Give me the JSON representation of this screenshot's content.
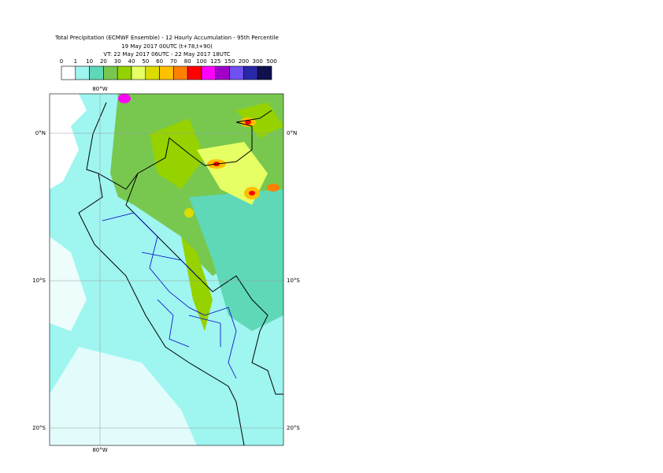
{
  "header": {
    "lines": [
      "Total Precipitation (ECMWF Ensemble) - 12 Hourly Accumulation - 95th Percentile",
      "19 May 2017 00UTC (t+78,t+90)",
      "VT: 22 May 2017 06UTC - 22 May 2017 18UTC"
    ]
  },
  "legend": {
    "labels": [
      0,
      1,
      10,
      20,
      30,
      40,
      50,
      60,
      70,
      80,
      100,
      125,
      150,
      200,
      300,
      500
    ],
    "colors": [
      "#ffffff",
      "#9ff5f0",
      "#5fd8b8",
      "#78c850",
      "#96d200",
      "#e6ff64",
      "#dcdc00",
      "#ffc000",
      "#ff8000",
      "#ff0000",
      "#ff00ff",
      "#a000c8",
      "#7050f0",
      "#2828a8",
      "#10104e"
    ]
  },
  "map": {
    "lon_top": "80°W",
    "lon_bottom": "80°W",
    "lat_left": [
      "0°N",
      "10°S",
      "20°S"
    ],
    "lat_right": [
      "0°N",
      "10°S",
      "20°S"
    ]
  }
}
